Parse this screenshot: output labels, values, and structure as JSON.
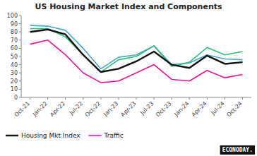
{
  "chart_data": {
    "type": "line",
    "title": "US Housing Market Index and Components",
    "categories": [
      "Oct-21",
      "Jan-22",
      "Apr-22",
      "Jul-22",
      "Oct-22",
      "Jan-23",
      "Apr-23",
      "Jul-23",
      "Oct-23",
      "Jan-24",
      "Apr-24",
      "Jul-24",
      "Oct-24"
    ],
    "series": [
      {
        "color": "#44aacc",
        "values": [
          88,
          87,
          82,
          60,
          35,
          49,
          52,
          63,
          40,
          42,
          52,
          47,
          46
        ]
      },
      {
        "color": "#33bb77",
        "values": [
          84,
          84,
          74,
          52,
          31,
          46,
          50,
          63,
          38,
          43,
          61,
          52,
          56
        ]
      },
      {
        "name": "Housing Mkt Index",
        "color": "#111111",
        "values": [
          80,
          83,
          77,
          52,
          31,
          35,
          44,
          56,
          40,
          36,
          51,
          41,
          43
        ]
      },
      {
        "name": "Traffic",
        "color": "#ee1199",
        "values": [
          65,
          70,
          52,
          30,
          18,
          20,
          30,
          40,
          22,
          20,
          33,
          24,
          28
        ]
      }
    ],
    "ylim": [
      0,
      100
    ],
    "yticks": [
      0,
      10,
      20,
      30,
      40,
      50,
      60,
      70,
      80,
      90,
      100
    ],
    "grid": false,
    "legend": "bottom",
    "annotations": [
      "ECONODAY."
    ]
  }
}
